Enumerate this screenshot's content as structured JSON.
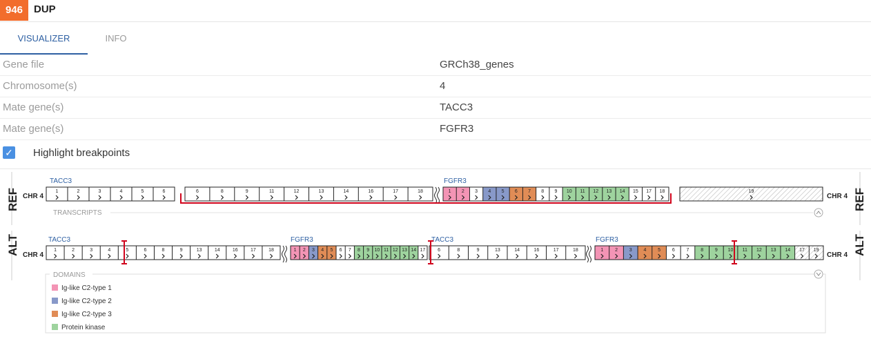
{
  "header": {
    "event_id": "946",
    "event_type": "DUP"
  },
  "tabs": [
    {
      "label": "VISUALIZER"
    },
    {
      "label": "INFO"
    }
  ],
  "fields": [
    {
      "label": "Gene file",
      "value": "GRCh38_genes"
    },
    {
      "label": "Chromosome(s)",
      "value": "4"
    },
    {
      "label": "Mate gene(s)",
      "value": "TACC3"
    },
    {
      "label": "Mate gene(s)",
      "value": "FGFR3"
    }
  ],
  "highlight": {
    "label": "Highlight breakpoints",
    "checked": true
  },
  "tracks": {
    "ref_label": "REF",
    "alt_label": "ALT",
    "chr_label": "CHR 4",
    "transcripts_label": "TRANSCRIPTS",
    "domains_label": "DOMAINS",
    "gene_tacc3": "TACC3",
    "gene_fgfr3": "FGFR3",
    "ref_exons_a": [
      "1",
      "2",
      "3",
      "4",
      "5",
      "6"
    ],
    "ref_exons_b": [
      "6",
      "8",
      "9",
      "11",
      "12",
      "13",
      "14",
      "16",
      "17",
      "18"
    ],
    "ref_exons_c": [
      "1",
      "2",
      "3",
      "4",
      "5",
      "6",
      "7",
      "8",
      "9",
      "10",
      "11",
      "12",
      "13",
      "14",
      "15",
      "17",
      "18"
    ],
    "ref_exons_d": [
      "19"
    ],
    "alt_exons_1": [
      "1",
      "2",
      "3",
      "4",
      "5",
      "6",
      "8",
      "9",
      "13",
      "14",
      "16",
      "17",
      "18"
    ],
    "alt_exons_2": [
      "1",
      "2",
      "3",
      "4",
      "5",
      "6",
      "7",
      "8",
      "9",
      "10",
      "11",
      "12",
      "13",
      "14",
      "17"
    ],
    "alt_exons_3": [
      "6",
      "8",
      "9",
      "13",
      "14",
      "16",
      "17",
      "18"
    ],
    "alt_exons_4": [
      "1",
      "2",
      "3",
      "4",
      "5",
      "6",
      "7",
      "8",
      "9",
      "10",
      "11",
      "12",
      "13",
      "14",
      "17",
      "19"
    ]
  },
  "domains": [
    {
      "name": "Ig-like C2-type 1",
      "color": "#f394b5"
    },
    {
      "name": "Ig-like C2-type 2",
      "color": "#8899c9"
    },
    {
      "name": "Ig-like C2-type 3",
      "color": "#e08c56"
    },
    {
      "name": "Protein kinase",
      "color": "#9ed39e"
    }
  ],
  "colors": {
    "accent": "#f26d2c",
    "tab_active": "#2d5fa2",
    "breakpoint": "#d0021b",
    "gene_label": "#2d5fa2"
  }
}
